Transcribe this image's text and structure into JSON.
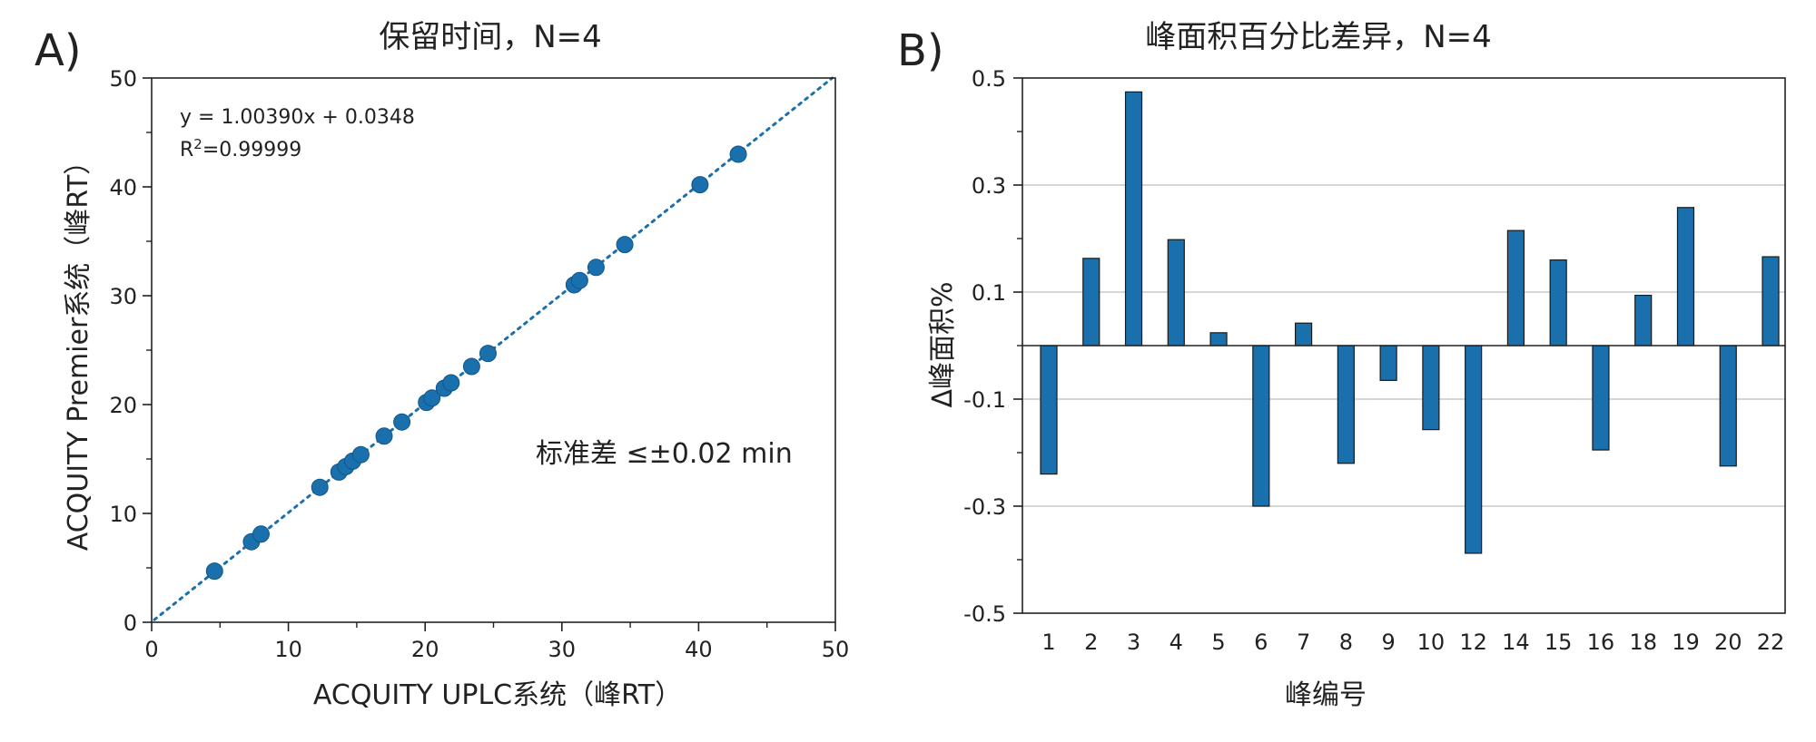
{
  "chart_data": [
    {
      "type": "scatter",
      "panel_label": "A)",
      "title": "保留时间，N=4",
      "xlabel": "ACQUITY UPLC系统（峰RT）",
      "ylabel": "ACQUITY Premier系统（峰RT）",
      "xlim": [
        0,
        50
      ],
      "ylim": [
        0,
        50
      ],
      "xticks": [
        "0",
        "10",
        "20",
        "30",
        "40",
        "50"
      ],
      "yticks": [
        "0",
        "10",
        "20",
        "30",
        "40",
        "50"
      ],
      "grid": false,
      "equation_text": "y = 1.00390x + 0.0348",
      "r2_label": "R",
      "r2_sup": "2",
      "r2_value": "=0.99999",
      "sd_text": "标准差 ≤±0.02 min",
      "fit": {
        "slope": 1.0039,
        "intercept": 0.0348
      },
      "marker_color": "#1a6fad",
      "points": [
        [
          4.6,
          4.7
        ],
        [
          7.3,
          7.4
        ],
        [
          8.0,
          8.1
        ],
        [
          12.3,
          12.4
        ],
        [
          13.7,
          13.8
        ],
        [
          14.2,
          14.3
        ],
        [
          14.7,
          14.8
        ],
        [
          15.3,
          15.4
        ],
        [
          17.0,
          17.1
        ],
        [
          18.3,
          18.4
        ],
        [
          20.1,
          20.2
        ],
        [
          20.5,
          20.6
        ],
        [
          21.4,
          21.5
        ],
        [
          21.9,
          22.0
        ],
        [
          23.4,
          23.5
        ],
        [
          24.6,
          24.7
        ],
        [
          30.9,
          31.0
        ],
        [
          31.3,
          31.4
        ],
        [
          32.5,
          32.6
        ],
        [
          34.6,
          34.7
        ],
        [
          40.1,
          40.2
        ],
        [
          42.9,
          43.0
        ]
      ]
    },
    {
      "type": "bar",
      "panel_label": "B)",
      "title": "峰面积百分比差异，N=4",
      "xlabel": "峰编号",
      "ylabel": "Δ峰面积%",
      "ylim": [
        -0.5,
        0.5
      ],
      "yticks": [
        "-0.5",
        "-0.3",
        "-0.1",
        "0.1",
        "0.3",
        "0.5"
      ],
      "grid": true,
      "bar_color": "#1a6fad",
      "categories": [
        "1",
        "2",
        "3",
        "4",
        "5",
        "6",
        "7",
        "8",
        "9",
        "10",
        "12",
        "14",
        "15",
        "16",
        "18",
        "19",
        "20",
        "22"
      ],
      "values": [
        -0.24,
        0.163,
        0.474,
        0.198,
        0.024,
        -0.3,
        0.042,
        -0.22,
        -0.065,
        -0.157,
        -0.388,
        0.215,
        0.16,
        -0.195,
        0.094,
        0.258,
        -0.225,
        0.166
      ]
    }
  ]
}
